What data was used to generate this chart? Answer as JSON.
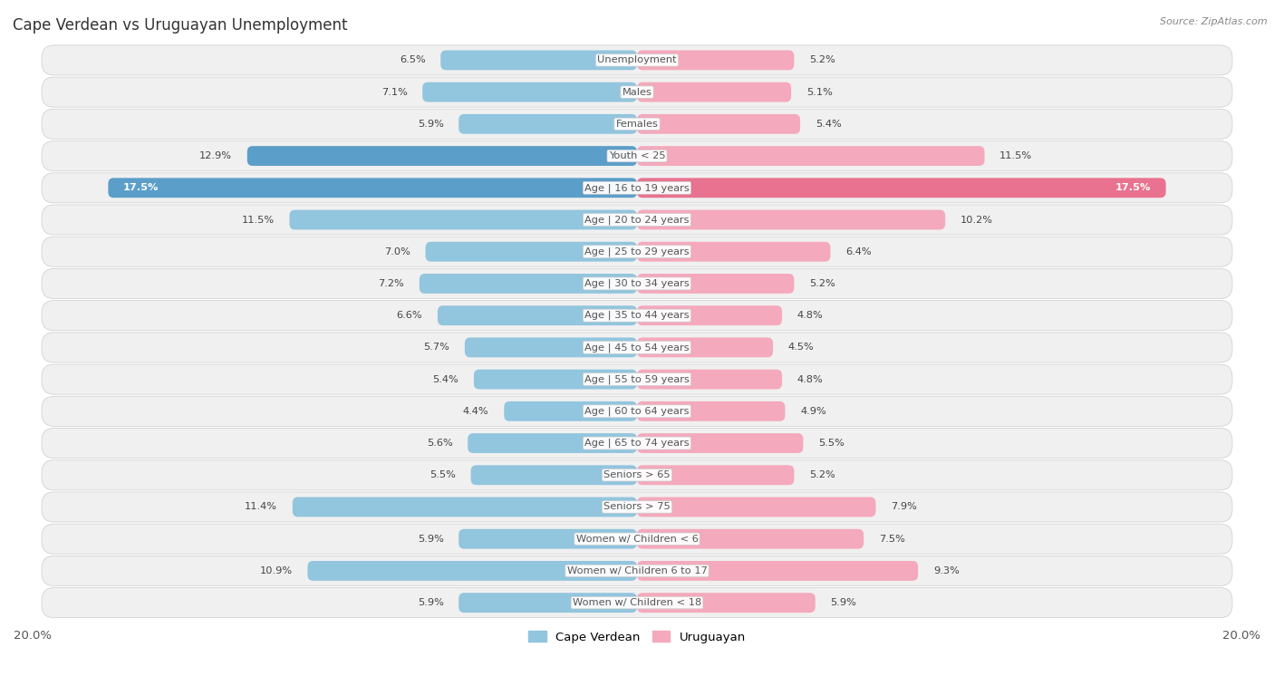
{
  "title": "Cape Verdean vs Uruguayan Unemployment",
  "source": "Source: ZipAtlas.com",
  "categories": [
    "Unemployment",
    "Males",
    "Females",
    "Youth < 25",
    "Age | 16 to 19 years",
    "Age | 20 to 24 years",
    "Age | 25 to 29 years",
    "Age | 30 to 34 years",
    "Age | 35 to 44 years",
    "Age | 45 to 54 years",
    "Age | 55 to 59 years",
    "Age | 60 to 64 years",
    "Age | 65 to 74 years",
    "Seniors > 65",
    "Seniors > 75",
    "Women w/ Children < 6",
    "Women w/ Children 6 to 17",
    "Women w/ Children < 18"
  ],
  "cape_verdean": [
    6.5,
    7.1,
    5.9,
    12.9,
    17.5,
    11.5,
    7.0,
    7.2,
    6.6,
    5.7,
    5.4,
    4.4,
    5.6,
    5.5,
    11.4,
    5.9,
    10.9,
    5.9
  ],
  "uruguayan": [
    5.2,
    5.1,
    5.4,
    11.5,
    17.5,
    10.2,
    6.4,
    5.2,
    4.8,
    4.5,
    4.8,
    4.9,
    5.5,
    5.2,
    7.9,
    7.5,
    9.3,
    5.9
  ],
  "cv_color": "#92c5de",
  "uy_color": "#f4a9bc",
  "cv_color_dark": "#5b9ec9",
  "uy_color_dark": "#e8728f",
  "bg_color": "#ffffff",
  "row_bg": "#f0f0f0",
  "row_highlight": "#e8e8e8",
  "max_val": 20.0,
  "label_color": "#555555",
  "value_color": "#444444",
  "title_color": "#333333"
}
